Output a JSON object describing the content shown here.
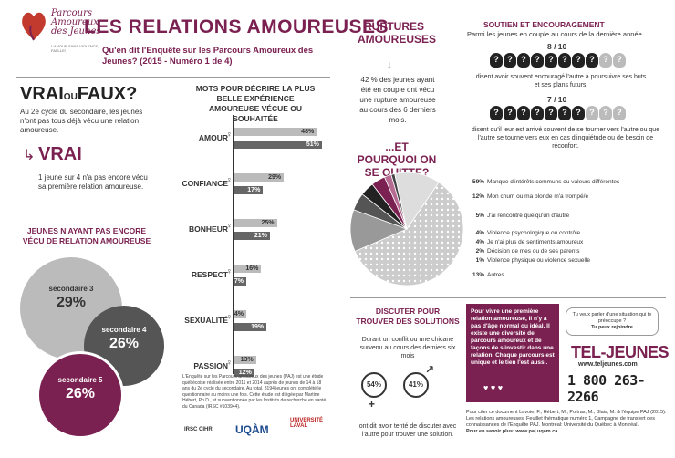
{
  "logo": {
    "title": "Parcours Amoureux des Jeunes",
    "sub": "L'AMOUR SANS VIOLENCE, FAIS-LE!"
  },
  "header": {
    "title": "LES RELATIONS AMOUREUSES",
    "subtitle": "Qu'en dit l'Enquête sur les Parcours Amoureux des Jeunes? (2015 - Numéro 1 de 4)"
  },
  "vrai": {
    "title_a": "VRAI",
    "title_ou": "OU",
    "title_b": "FAUX?",
    "question": "Au 2e cycle du secondaire, les jeunes n'ont pas tous déjà vécu une relation amoureuse.",
    "answer": "VRAI",
    "stat": "1 jeune sur 4 n'a pas encore vécu sa première relation amoureuse."
  },
  "secondaire": {
    "title": "JEUNES N'AYANT PAS ENCORE VÉCU DE RELATION AMOUREUSE",
    "items": [
      {
        "label": "secondaire 3",
        "value": "29%"
      },
      {
        "label": "secondaire 4",
        "value": "26%"
      },
      {
        "label": "secondaire 5",
        "value": "26%"
      }
    ]
  },
  "mots": {
    "title": "MOTS POUR DÉCRIRE LA PLUS BELLE EXPÉRIENCE AMOUREUSE VÉCUE OU SOUHAITÉE",
    "categories": [
      "AMOUR",
      "CONFIANCE",
      "BONHEUR",
      "RESPECT",
      "SEXUALITÉ",
      "PASSION"
    ],
    "a": [
      48,
      29,
      25,
      16,
      4,
      13
    ],
    "b": [
      51,
      17,
      21,
      7,
      19,
      12
    ],
    "a_labels": [
      "48%",
      "29%",
      "25%",
      "16%",
      "4%",
      "13%"
    ],
    "b_labels": [
      "51%",
      "17%",
      "21%",
      "7%",
      "19%",
      "12%"
    ]
  },
  "footnote": "L'Enquête sur les Parcours amoureux des jeunes (PAJ) est une étude québécoise réalisée entre 2011 et 2014 auprès de jeunes de 14 à 18 ans du 2e cycle du secondaire. Au total, 8194 jeunes ont complété le questionnaire au moins une fois. Cette étude est dirigée par Martine Hébert, Ph.D., et subventionnée par les Instituts de recherche en santé du Canada (IRSC #103944).",
  "institutions": {
    "irsc": "IRSC CIHR",
    "uqam": "UQÀM",
    "laval": "UNIVERSITÉ LAVAL"
  },
  "ruptures": {
    "title": "RUPTURES AMOUREUSES",
    "text": "42 % des jeunes ayant été en couple ont vécu une rupture amoureuse au cours des 6 derniers mois."
  },
  "quitte": {
    "title": "...ET POURQUOI ON SE QUITTE?",
    "reasons": [
      {
        "pct": "59%",
        "text": "Manque d'intérêts communs ou valeurs différentes"
      },
      {
        "pct": "12%",
        "text": "Mon chum ou ma blonde m'a trompé/e"
      },
      {
        "pct": "5%",
        "text": "J'ai rencontré quelqu'un d'autre"
      },
      {
        "pct": "4%",
        "text": "Violence psychologique ou contrôle"
      },
      {
        "pct": "4%",
        "text": "Je n'ai plus de sentiments amoureux"
      },
      {
        "pct": "2%",
        "text": "Décision de mes ou de ses parents"
      },
      {
        "pct": "1%",
        "text": "Violence physique ou violence sexuelle"
      },
      {
        "pct": "13%",
        "text": "Autres"
      }
    ]
  },
  "soutien": {
    "title": "SOUTIEN ET ENCOURAGEMENT",
    "sub": "Parmi les jeunes en couple au cours de la dernière année...",
    "first_frac": "8 / 10",
    "first_text": "disent avoir souvent encouragé l'autre à poursuivre ses buts et ses plans futurs.",
    "second_frac": "7 / 10",
    "second_text": "disent qu'il leur est arrivé souvent de se tourner vers l'autre ou que l'autre se tourne vers eux en cas d'inquiétude ou de besoin de réconfort."
  },
  "discuter": {
    "title": "DISCUTER POUR TROUVER DES SOLUTIONS",
    "text": "Durant un conflit ou une chicane survenu au cours des derniers six mois",
    "female": "54%",
    "male": "41%",
    "text2": "ont dit avoir tenté de discuter avec l'autre pour trouver une solution."
  },
  "purple": "Pour vivre une première relation amoureuse, il n'y a pas d'âge normal ou idéal. Il existe une diversité de parcours amoureux et de façons de s'investir dans une relation. Chaque parcours est unique et le tien l'est aussi.",
  "teljeunes": {
    "speech_a": "Tu veux parler d'une situation qui te préoccupe ?",
    "speech_b": "Tu peux rejoindre",
    "logo": "TEL-JEUNES",
    "url": "www.teljeunes.com",
    "phone": "1 800 263-2266"
  },
  "cite": "Pour citer ce document Lavoie, F., Hébert, M., Poitras, M., Blais, M. & l'équipe PAJ (2015). Les relations amoureuses. Feuillet thématique numéro 1, Campagne de transfert des connaissances de l'Enquête PAJ. Montréal: Université du Québec à Montréal.",
  "cite_url": "Pour en savoir plus: www.paj.uqam.ca"
}
